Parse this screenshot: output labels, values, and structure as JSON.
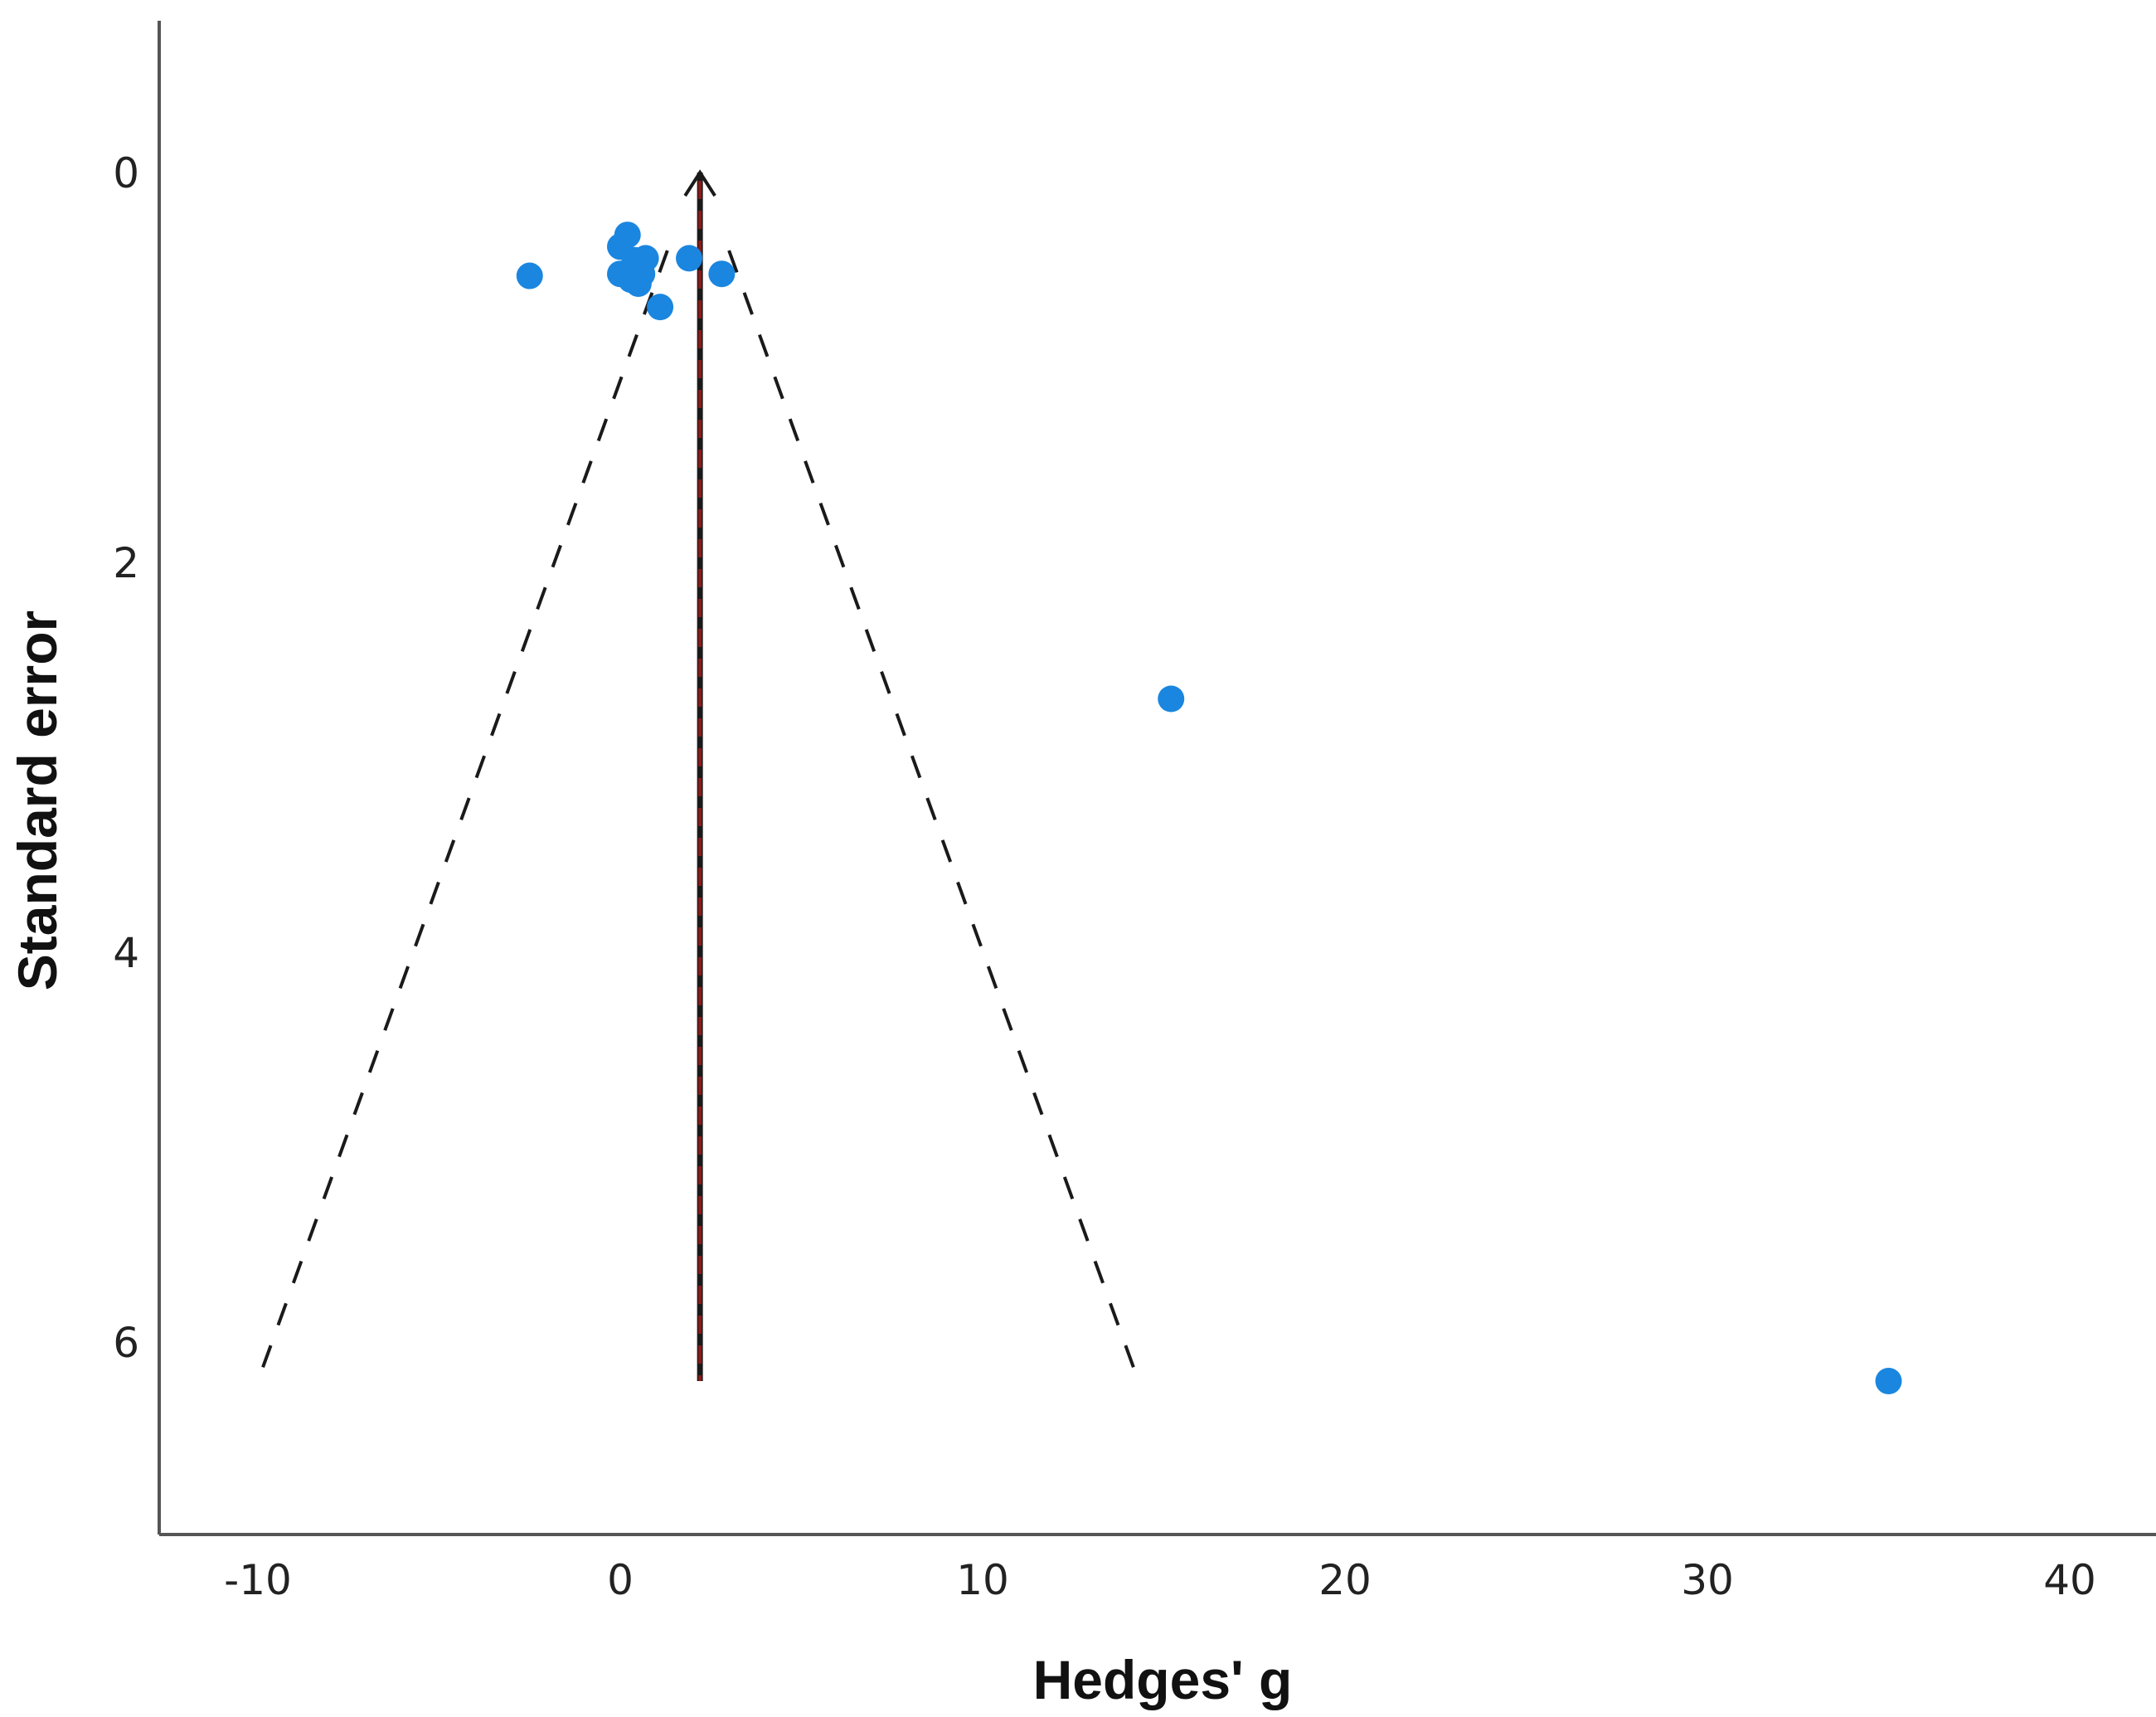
{
  "chart_data": {
    "type": "scatter",
    "title": "",
    "xlabel": "Hedges' g",
    "ylabel": "Standard error",
    "xlim": [
      -12.5,
      42.5
    ],
    "ylim": [
      -0.8,
      7.0
    ],
    "y_inverted": true,
    "grid": false,
    "x_ticks": [
      -10,
      0,
      10,
      20,
      30,
      40
    ],
    "x_tick_labels": [
      "-10",
      "0",
      "10",
      "20",
      "30",
      "40"
    ],
    "y_ticks": [
      0,
      2,
      4,
      6
    ],
    "y_tick_labels": [
      "0",
      "2",
      "4",
      "6"
    ],
    "series": [
      {
        "points": [
          {
            "x": -2.5,
            "y": 0.53
          },
          {
            "x": 0.0,
            "y": 0.38
          },
          {
            "x": 0.2,
            "y": 0.32
          },
          {
            "x": 0.4,
            "y": 0.45
          },
          {
            "x": 0.7,
            "y": 0.44
          },
          {
            "x": 0.0,
            "y": 0.52
          },
          {
            "x": 0.3,
            "y": 0.55
          },
          {
            "x": 0.5,
            "y": 0.57
          },
          {
            "x": 0.6,
            "y": 0.52
          },
          {
            "x": 1.1,
            "y": 0.69
          },
          {
            "x": 1.9,
            "y": 0.44
          },
          {
            "x": 2.8,
            "y": 0.52
          },
          {
            "x": 15.2,
            "y": 2.7
          },
          {
            "x": 35.0,
            "y": 6.2
          }
        ]
      }
    ],
    "mean_line": {
      "x": 2.2,
      "y_from": 0.0,
      "y_to": 6.2
    },
    "funnel": {
      "left": [
        {
          "x": 1.3,
          "y": 0.4
        },
        {
          "x": -10.0,
          "y": 6.2
        }
      ],
      "right": [
        {
          "x": 3.0,
          "y": 0.4
        },
        {
          "x": 14.3,
          "y": 6.2
        }
      ]
    },
    "colors": {
      "point": "#1a86e0",
      "funnel": "#1a1a1a",
      "mean_line": "#1a1a1a",
      "mean_line_dash": "#8b1a1a",
      "axis": "#555555"
    }
  }
}
